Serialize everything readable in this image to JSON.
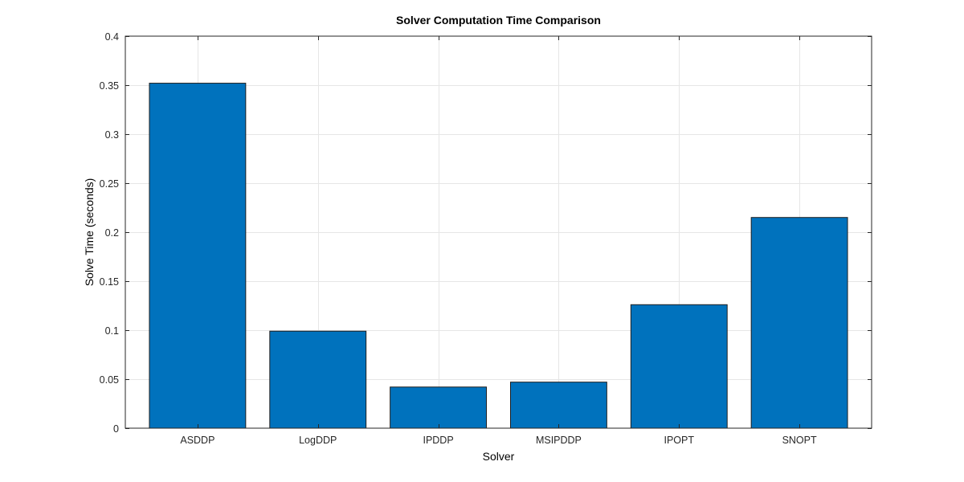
{
  "chart_data": {
    "type": "bar",
    "title": "Solver Computation Time Comparison",
    "xlabel": "Solver",
    "ylabel": "Solve Time (seconds)",
    "categories": [
      "ASDDP",
      "LogDDP",
      "IPDDP",
      "MSIPDDP",
      "IPOPT",
      "SNOPT"
    ],
    "values": [
      0.352,
      0.099,
      0.042,
      0.047,
      0.126,
      0.215
    ],
    "ylim": [
      0,
      0.4
    ],
    "yticks": [
      0,
      0.05,
      0.1,
      0.15,
      0.2,
      0.25,
      0.3,
      0.35,
      0.4
    ],
    "ytick_labels": [
      "0",
      "0.05",
      "0.1",
      "0.15",
      "0.2",
      "0.25",
      "0.3",
      "0.35",
      "0.4"
    ],
    "grid": true,
    "bar_color": "#0072bd"
  }
}
